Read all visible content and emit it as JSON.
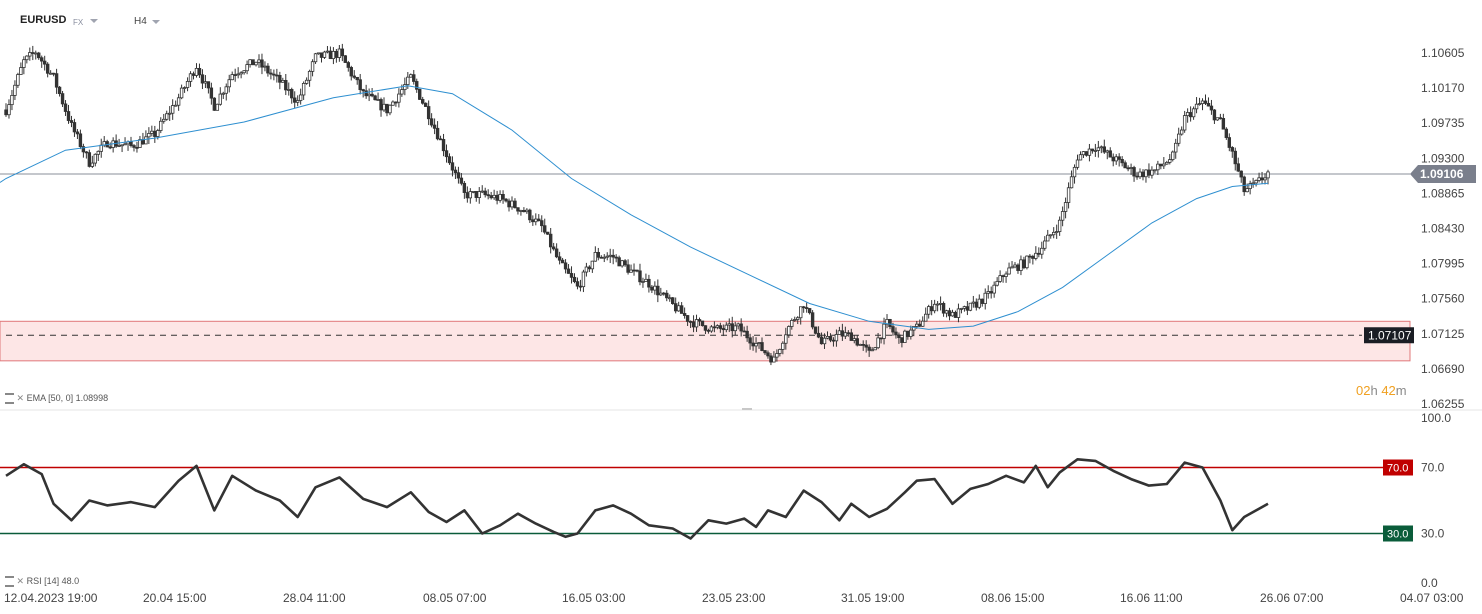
{
  "header": {
    "symbol": "EURUSD",
    "market": "FX",
    "timeframe": "H4"
  },
  "ema_label": {
    "name": "EMA",
    "params": "[50, 0]",
    "value": "1.08998"
  },
  "rsi_label": {
    "name": "RSI",
    "params": "[14]",
    "value": "48.0"
  },
  "timer": {
    "hours": "02",
    "hours_unit": "h",
    "minutes": "42",
    "minutes_unit": "m"
  },
  "colors": {
    "candle": "#333333",
    "ema": "#2e8fd0",
    "zone_fill": "#fde6e6",
    "zone_border": "#e0787a",
    "rsi_line": "#333333",
    "overbought": "#c00000",
    "oversold": "#0a5c3a",
    "current_price_tag": "#7a7f8c"
  },
  "chart_data": [
    {
      "type": "candlestick",
      "symbol": "EURUSD",
      "timeframe": "H4",
      "y_ticks": [
        "1.10605",
        "1.10170",
        "1.09735",
        "1.09300",
        "1.08865",
        "1.08430",
        "1.07995",
        "1.07560",
        "1.07125",
        "1.06690",
        "1.06255"
      ],
      "ylim": [
        1.06255,
        1.10605
      ],
      "x_ticks": [
        "12.04.2023  19:00",
        "20.04  15:00",
        "28.04  11:00",
        "08.05  07:00",
        "16.05  03:00",
        "23.05  23:00",
        "31.05  19:00",
        "08.06  15:00",
        "16.06  11:00",
        "26.06  07:00",
        "04.07  03:00"
      ],
      "current_price": {
        "value": 1.09106,
        "label": "1.09106"
      },
      "level_line": {
        "value": 1.07107,
        "label": "1.07107",
        "style": "dashed"
      },
      "support_zone": [
        1.0679,
        1.0728
      ],
      "ema": {
        "period": 50,
        "shift": 0,
        "last_value": 1.08998
      },
      "close_path": [
        [
          0,
          1.099
        ],
        [
          6,
          1.105
        ],
        [
          10,
          1.1062
        ],
        [
          16,
          1.103
        ],
        [
          22,
          1.097
        ],
        [
          28,
          1.0925
        ],
        [
          34,
          1.095
        ],
        [
          42,
          1.0945
        ],
        [
          50,
          1.096
        ],
        [
          58,
          1.1005
        ],
        [
          64,
          1.1045
        ],
        [
          70,
          1.0995
        ],
        [
          76,
          1.1035
        ],
        [
          84,
          1.105
        ],
        [
          92,
          1.1025
        ],
        [
          98,
          1.1
        ],
        [
          104,
          1.1055
        ],
        [
          112,
          1.106
        ],
        [
          120,
          1.101
        ],
        [
          128,
          1.099
        ],
        [
          136,
          1.103
        ],
        [
          142,
          1.0985
        ],
        [
          148,
          1.0935
        ],
        [
          154,
          1.0885
        ],
        [
          160,
          1.0885
        ],
        [
          166,
          1.088
        ],
        [
          174,
          1.0865
        ],
        [
          180,
          1.0845
        ],
        [
          186,
          1.08
        ],
        [
          192,
          1.077
        ],
        [
          198,
          1.081
        ],
        [
          204,
          1.0808
        ],
        [
          210,
          1.079
        ],
        [
          216,
          1.0775
        ],
        [
          224,
          1.0748
        ],
        [
          230,
          1.0728
        ],
        [
          238,
          1.0718
        ],
        [
          246,
          1.072
        ],
        [
          252,
          1.07
        ],
        [
          258,
          1.068
        ],
        [
          262,
          1.0715
        ],
        [
          268,
          1.075
        ],
        [
          274,
          1.07
        ],
        [
          280,
          1.0712
        ],
        [
          284,
          1.071
        ],
        [
          290,
          1.0688
        ],
        [
          296,
          1.0725
        ],
        [
          300,
          1.0705
        ],
        [
          306,
          1.072
        ],
        [
          312,
          1.0752
        ],
        [
          318,
          1.0735
        ],
        [
          324,
          1.0745
        ],
        [
          330,
          1.076
        ],
        [
          336,
          1.079
        ],
        [
          342,
          1.08
        ],
        [
          348,
          1.082
        ],
        [
          354,
          1.085
        ],
        [
          360,
          1.0932
        ],
        [
          366,
          1.0945
        ],
        [
          374,
          1.0925
        ],
        [
          380,
          1.091
        ],
        [
          386,
          1.0915
        ],
        [
          392,
          1.0932
        ],
        [
          396,
          1.098
        ],
        [
          402,
          1.1
        ],
        [
          408,
          1.0975
        ],
        [
          412,
          1.0935
        ],
        [
          416,
          1.089
        ],
        [
          420,
          1.0898
        ],
        [
          424,
          1.0912
        ]
      ],
      "ema_path": [
        [
          0,
          1.0905
        ],
        [
          20,
          1.094
        ],
        [
          50,
          1.0955
        ],
        [
          80,
          1.0975
        ],
        [
          110,
          1.1005
        ],
        [
          135,
          1.102
        ],
        [
          150,
          1.101
        ],
        [
          170,
          1.0965
        ],
        [
          190,
          1.0905
        ],
        [
          210,
          1.086
        ],
        [
          230,
          1.082
        ],
        [
          250,
          1.0785
        ],
        [
          270,
          1.075
        ],
        [
          290,
          1.0728
        ],
        [
          310,
          1.0718
        ],
        [
          325,
          1.0722
        ],
        [
          340,
          1.074
        ],
        [
          355,
          1.077
        ],
        [
          370,
          1.081
        ],
        [
          385,
          1.085
        ],
        [
          400,
          1.088
        ],
        [
          412,
          1.0895
        ],
        [
          424,
          1.0899
        ]
      ]
    },
    {
      "type": "line",
      "indicator": "RSI",
      "period": 14,
      "y_ticks": [
        "100.0",
        "70.0",
        "30.0",
        "0.0"
      ],
      "ylim": [
        0,
        100
      ],
      "levels": [
        {
          "value": 70,
          "label": "70.0"
        },
        {
          "value": 30,
          "label": "30.0"
        }
      ],
      "last_value": 48.0,
      "rsi_path": [
        [
          0,
          65
        ],
        [
          6,
          72
        ],
        [
          12,
          66
        ],
        [
          16,
          48
        ],
        [
          22,
          38
        ],
        [
          28,
          50
        ],
        [
          34,
          47
        ],
        [
          42,
          49
        ],
        [
          50,
          46
        ],
        [
          58,
          62
        ],
        [
          64,
          71
        ],
        [
          70,
          44
        ],
        [
          76,
          65
        ],
        [
          84,
          56
        ],
        [
          92,
          50
        ],
        [
          98,
          40
        ],
        [
          104,
          58
        ],
        [
          112,
          64
        ],
        [
          120,
          51
        ],
        [
          128,
          46
        ],
        [
          136,
          55
        ],
        [
          142,
          43
        ],
        [
          148,
          37
        ],
        [
          154,
          44
        ],
        [
          160,
          30
        ],
        [
          166,
          35
        ],
        [
          172,
          42
        ],
        [
          178,
          36
        ],
        [
          184,
          31
        ],
        [
          188,
          28
        ],
        [
          192,
          30
        ],
        [
          198,
          44
        ],
        [
          204,
          47
        ],
        [
          210,
          42
        ],
        [
          216,
          35
        ],
        [
          224,
          33
        ],
        [
          230,
          27
        ],
        [
          236,
          38
        ],
        [
          242,
          36
        ],
        [
          248,
          39
        ],
        [
          252,
          34
        ],
        [
          256,
          44
        ],
        [
          262,
          40
        ],
        [
          268,
          56
        ],
        [
          274,
          49
        ],
        [
          280,
          38
        ],
        [
          284,
          48
        ],
        [
          290,
          40
        ],
        [
          296,
          45
        ],
        [
          302,
          55
        ],
        [
          306,
          62
        ],
        [
          312,
          63
        ],
        [
          318,
          48
        ],
        [
          324,
          57
        ],
        [
          330,
          60
        ],
        [
          336,
          65
        ],
        [
          342,
          61
        ],
        [
          346,
          71
        ],
        [
          350,
          58
        ],
        [
          354,
          67
        ],
        [
          360,
          75
        ],
        [
          366,
          74
        ],
        [
          372,
          68
        ],
        [
          378,
          63
        ],
        [
          384,
          59
        ],
        [
          390,
          60
        ],
        [
          396,
          73
        ],
        [
          402,
          70
        ],
        [
          408,
          50
        ],
        [
          412,
          32
        ],
        [
          416,
          40
        ],
        [
          420,
          44
        ],
        [
          424,
          48
        ]
      ]
    }
  ]
}
